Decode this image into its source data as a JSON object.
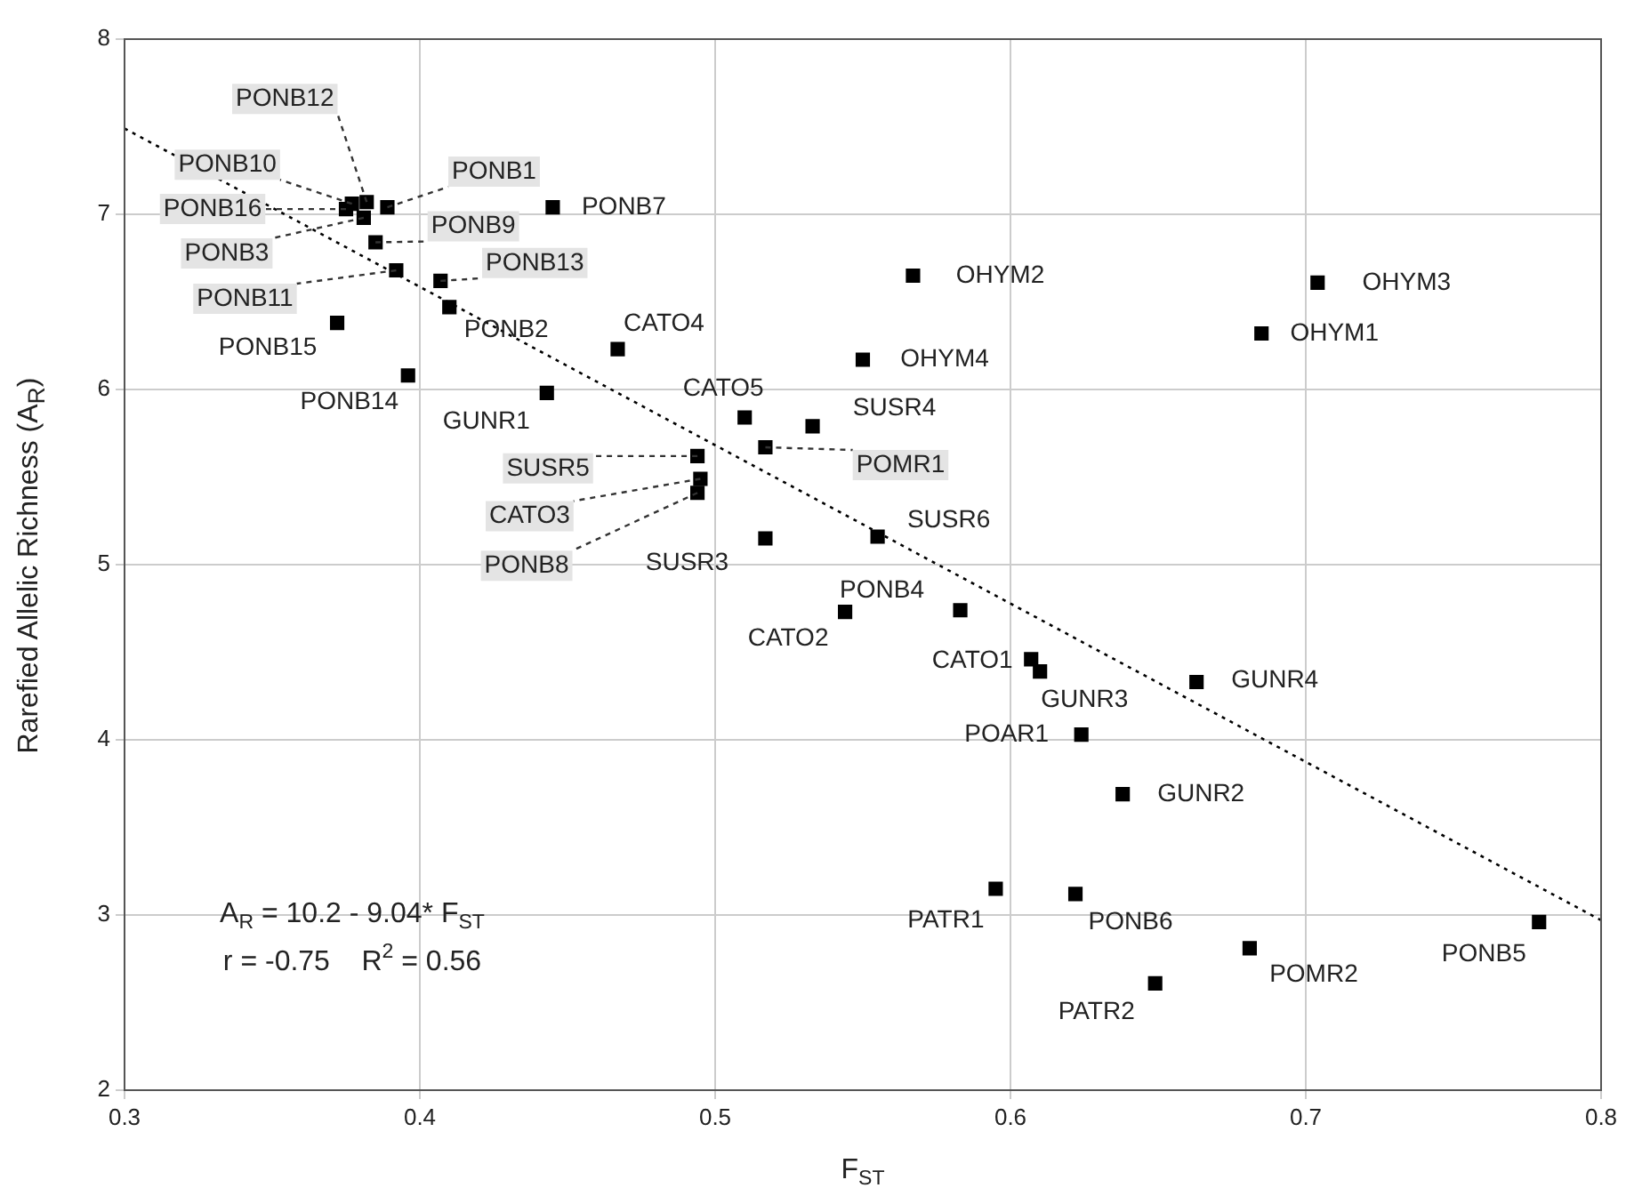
{
  "chart_data": {
    "type": "scatter",
    "xlabel": "F$_{ST}$",
    "ylabel": "Rarefied Allelic Richness (A$_{R}$)",
    "xlim": [
      0.3,
      0.8
    ],
    "xticks": [
      0.3,
      0.4,
      0.5,
      0.6,
      0.7,
      0.8
    ],
    "ylim": [
      2,
      8
    ],
    "yticks": [
      2,
      3,
      4,
      5,
      6,
      7,
      8
    ],
    "grid": true,
    "legend": false,
    "marker": "square",
    "series": [
      {
        "color": "#000000",
        "x": [
          0.382,
          0.377,
          0.375,
          0.381,
          0.389,
          0.385,
          0.407,
          0.392,
          0.445,
          0.41,
          0.372,
          0.396,
          0.443,
          0.467,
          0.51,
          0.533,
          0.517,
          0.494,
          0.495,
          0.494,
          0.517,
          0.555,
          0.583,
          0.544,
          0.567,
          0.55,
          0.704,
          0.685,
          0.607,
          0.61,
          0.663,
          0.624,
          0.638,
          0.595,
          0.622,
          0.681,
          0.649,
          0.779
        ],
        "values": [
          7.07,
          7.06,
          7.03,
          6.98,
          7.04,
          6.84,
          6.62,
          6.68,
          7.04,
          6.47,
          6.38,
          6.08,
          5.98,
          6.23,
          5.84,
          5.79,
          5.67,
          5.62,
          5.49,
          5.41,
          5.15,
          5.16,
          4.74,
          4.73,
          6.65,
          6.17,
          6.61,
          6.32,
          4.46,
          4.39,
          4.33,
          4.03,
          3.69,
          3.15,
          3.12,
          2.81,
          2.61,
          2.96
        ]
      },
      {
        "type": "line",
        "color": "#000000",
        "line_style": "dotted",
        "marker": "none",
        "x": [
          0.3,
          0.8
        ],
        "values": [
          7.49,
          2.97
        ]
      }
    ],
    "annotations": [
      "A$_{R}$ = 10.2 - 9.04* F$_{ST}$",
      "r = -0.75    R$^{2}$ = 0.56",
      {
        "text": "PONB12",
        "x": 0.382,
        "y": 7.07
      },
      {
        "text": "PONB10",
        "x": 0.377,
        "y": 7.06
      },
      {
        "text": "PONB16",
        "x": 0.375,
        "y": 7.03
      },
      {
        "text": "PONB3",
        "x": 0.381,
        "y": 6.98
      },
      {
        "text": "PONB1",
        "x": 0.389,
        "y": 7.04
      },
      {
        "text": "PONB9",
        "x": 0.385,
        "y": 6.84
      },
      {
        "text": "PONB13",
        "x": 0.407,
        "y": 6.62
      },
      {
        "text": "PONB11",
        "x": 0.392,
        "y": 6.68
      },
      {
        "text": "PONB7",
        "x": 0.445,
        "y": 7.04
      },
      {
        "text": "PONB2",
        "x": 0.41,
        "y": 6.47
      },
      {
        "text": "PONB15",
        "x": 0.372,
        "y": 6.38
      },
      {
        "text": "PONB14",
        "x": 0.396,
        "y": 6.08
      },
      {
        "text": "GUNR1",
        "x": 0.443,
        "y": 5.98
      },
      {
        "text": "CATO4",
        "x": 0.467,
        "y": 6.23
      },
      {
        "text": "CATO5",
        "x": 0.51,
        "y": 5.84
      },
      {
        "text": "SUSR4",
        "x": 0.533,
        "y": 5.79
      },
      {
        "text": "POMR1",
        "x": 0.517,
        "y": 5.67
      },
      {
        "text": "SUSR5",
        "x": 0.494,
        "y": 5.62
      },
      {
        "text": "CATO3",
        "x": 0.495,
        "y": 5.49
      },
      {
        "text": "PONB8",
        "x": 0.494,
        "y": 5.41
      },
      {
        "text": "SUSR3",
        "x": 0.517,
        "y": 5.15
      },
      {
        "text": "SUSR6",
        "x": 0.555,
        "y": 5.16
      },
      {
        "text": "PONB4",
        "x": 0.583,
        "y": 4.74
      },
      {
        "text": "CATO2",
        "x": 0.544,
        "y": 4.73
      },
      {
        "text": "OHYM2",
        "x": 0.567,
        "y": 6.65
      },
      {
        "text": "OHYM4",
        "x": 0.55,
        "y": 6.17
      },
      {
        "text": "OHYM3",
        "x": 0.704,
        "y": 6.61
      },
      {
        "text": "OHYM1",
        "x": 0.685,
        "y": 6.32
      },
      {
        "text": "CATO1",
        "x": 0.607,
        "y": 4.46
      },
      {
        "text": "GUNR3",
        "x": 0.61,
        "y": 4.39
      },
      {
        "text": "GUNR4",
        "x": 0.663,
        "y": 4.33
      },
      {
        "text": "POAR1",
        "x": 0.624,
        "y": 4.03
      },
      {
        "text": "GUNR2",
        "x": 0.638,
        "y": 3.69
      },
      {
        "text": "PATR1",
        "x": 0.595,
        "y": 3.15
      },
      {
        "text": "PONB6",
        "x": 0.622,
        "y": 3.12
      },
      {
        "text": "POMR2",
        "x": 0.681,
        "y": 2.81
      },
      {
        "text": "PATR2",
        "x": 0.649,
        "y": 2.61
      },
      {
        "text": "PONB5",
        "x": 0.779,
        "y": 2.96
      }
    ]
  }
}
